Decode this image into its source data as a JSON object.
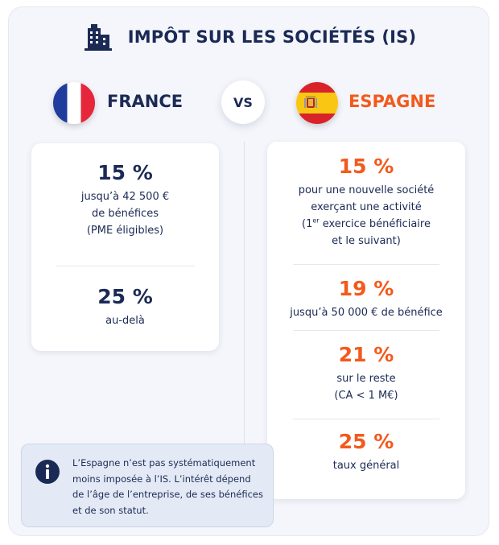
{
  "title": "IMPÔT SUR LES SOCIÉTÉS (IS)",
  "vs_label": "VS",
  "france": {
    "name": "FRANCE",
    "blocks": [
      {
        "rate": "15 %",
        "lines": [
          "jusqu’à 42 500 €",
          "de bénéfices",
          "(PME éligibles)"
        ]
      },
      {
        "rate": "25 %",
        "lines": [
          "au-delà"
        ]
      }
    ]
  },
  "spain": {
    "name": "ESPAGNE",
    "blocks": [
      {
        "rate": "15 %",
        "lines": [
          "pour une nouvelle société",
          "exerçant une activité"
        ],
        "sup_line": {
          "pre": "(1",
          "sup": "er",
          "post": " exercice bénéficiaire"
        },
        "last_line": "et le suivant)"
      },
      {
        "rate": "19 %",
        "lines": [
          "jusqu’à 50 000 € de bénéfice"
        ]
      },
      {
        "rate": "21 %",
        "lines": [
          "sur le reste",
          "(CA < 1 M€)"
        ]
      },
      {
        "rate": "25 %",
        "lines": [
          "taux général"
        ]
      }
    ]
  },
  "info_note": {
    "lines": [
      "L’Espagne n’est pas systématiquement",
      "moins imposée à l’IS. L’intérêt dépend",
      "de l’âge de l’entreprise, de ses bénéfices",
      "et de son statut."
    ]
  },
  "colors": {
    "navy": "#1b2a55",
    "orange": "#f25a1d",
    "info_bg": "#e4eaf5"
  },
  "icons": {
    "header": "building-icon",
    "info": "info-icon",
    "fr_flag": "france-flag-icon",
    "es_flag": "spain-flag-icon"
  }
}
